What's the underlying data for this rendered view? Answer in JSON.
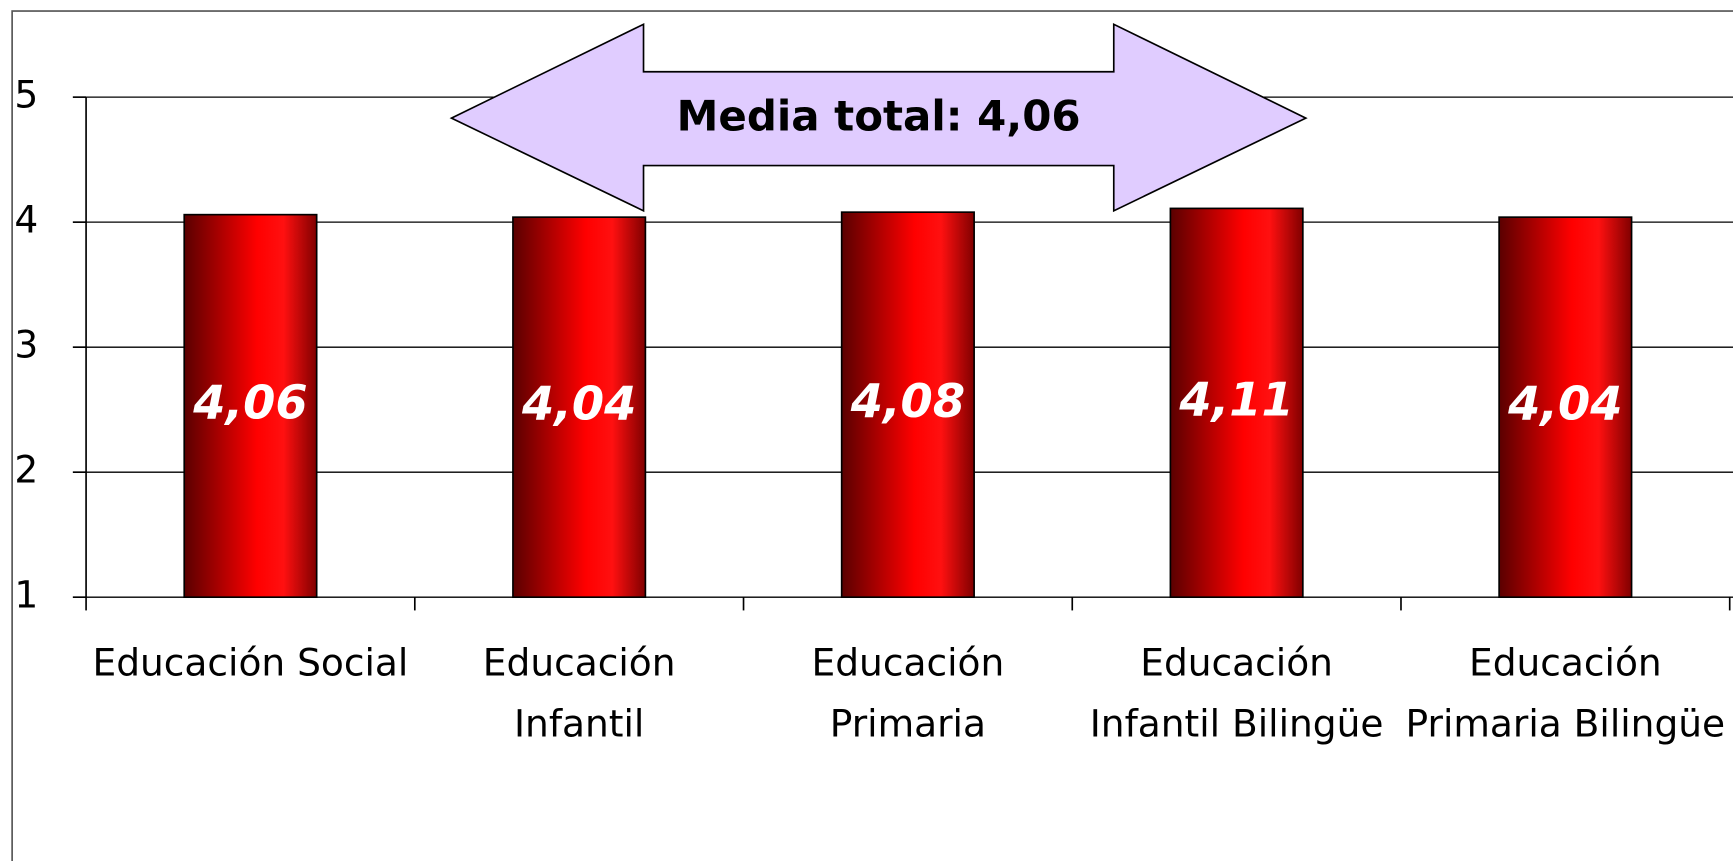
{
  "chart_data": {
    "type": "bar",
    "categories": [
      "Educación Social",
      "Educación\nInfantil",
      "Educación\nPrimaria",
      "Educación\nInfantil Bilingüe",
      "Educación\nPrimaria Bilingüe"
    ],
    "values": [
      4.06,
      4.04,
      4.08,
      4.11,
      4.04
    ],
    "value_labels": [
      "4,06",
      "4,04",
      "4,08",
      "4,11",
      "4,04"
    ],
    "color": "#ff0000",
    "ylim": [
      1,
      5
    ],
    "yticks": [
      1,
      2,
      3,
      4,
      5
    ],
    "grid": true,
    "annotation": "Media total: 4,06"
  }
}
